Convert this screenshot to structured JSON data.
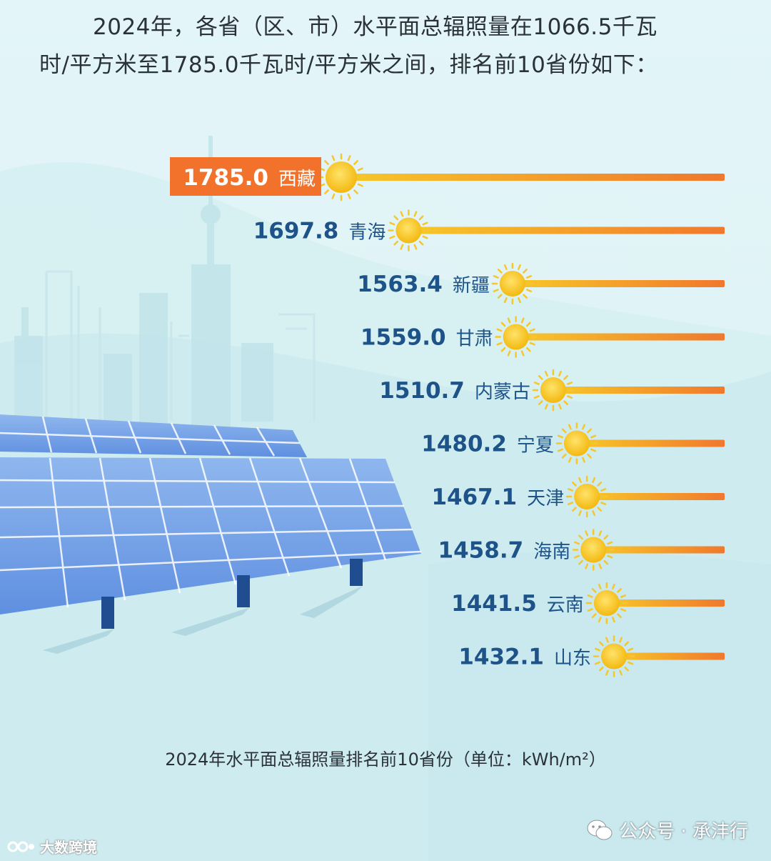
{
  "intro": {
    "line1": "2024年，各省（区、市）水平面总辐照量在1066.5千瓦",
    "line2": "时/平方米至1785.0千瓦时/平方米之间，排名前10省份如下："
  },
  "chart_data": {
    "type": "bar",
    "orientation": "horizontal",
    "categories": [
      "西藏",
      "青海",
      "新疆",
      "甘肃",
      "内蒙古",
      "宁夏",
      "天津",
      "海南",
      "云南",
      "山东"
    ],
    "values": [
      1785.0,
      1697.8,
      1563.4,
      1559.0,
      1510.7,
      1480.2,
      1467.1,
      1458.7,
      1441.5,
      1432.1
    ],
    "value_labels": [
      "1785.0",
      "1697.8",
      "1563.4",
      "1559.0",
      "1510.7",
      "1480.2",
      "1467.1",
      "1458.7",
      "1441.5",
      "1432.1"
    ],
    "title": "2024年水平面总辐照量排名前10省份（单位：kWh/m²）",
    "highlight_index": 0,
    "colors": {
      "highlight_box": "#f2722b",
      "value_text": "#1d5388",
      "bar_start": "#f7c829",
      "bar_end": "#f0782d",
      "sun": "#f5c320"
    }
  },
  "caption": "2024年水平面总辐照量排名前10省份（单位：kWh/m²）",
  "watermarks": {
    "left": "大数跨境",
    "right": "公众号 · 承沣行"
  }
}
